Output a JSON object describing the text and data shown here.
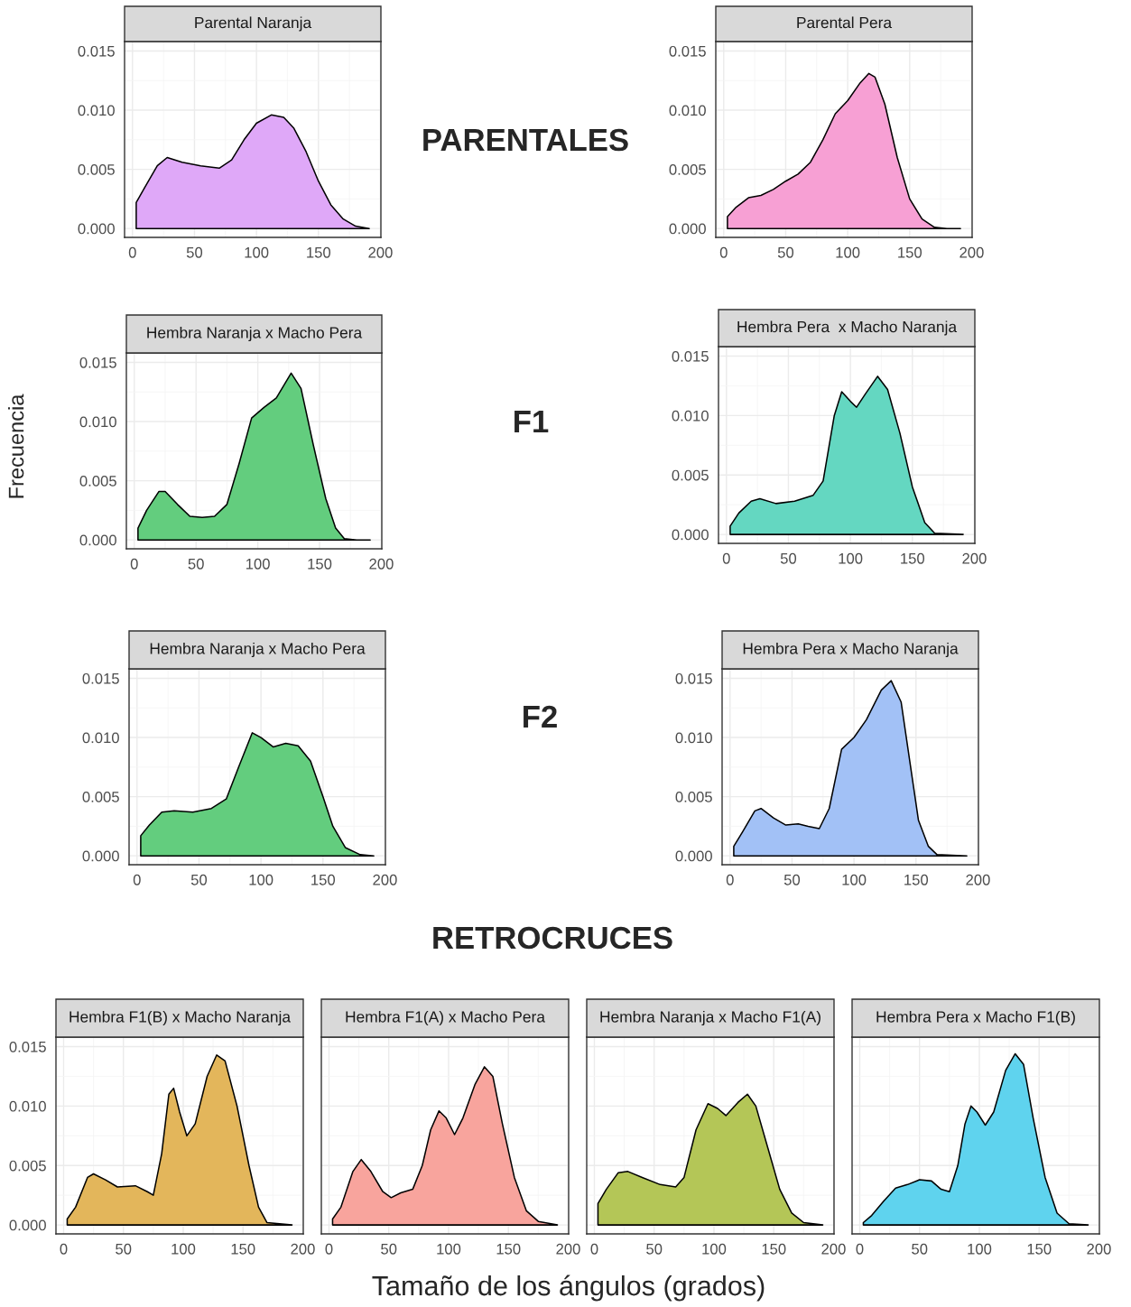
{
  "chart_data": [
    {
      "type": "area",
      "title": "Parental Naranja",
      "annotations": [
        "PARENTALES"
      ],
      "color": "#dfa8f8",
      "grid": true,
      "xlim": [
        -6.4,
        200.4
      ],
      "ylim": [
        -0.00075,
        0.0158
      ],
      "xticks": [
        0,
        50,
        100,
        150,
        200
      ],
      "yticks": [
        {
          "value": 0,
          "label": "0.000"
        },
        {
          "value": 0.005,
          "label": "0.005"
        },
        {
          "value": 0.01,
          "label": "0.010"
        },
        {
          "value": 0.015,
          "label": "0.015"
        }
      ],
      "x": [
        3,
        10,
        20,
        28,
        40,
        55,
        70,
        80,
        90,
        100,
        112,
        122,
        130,
        140,
        150,
        160,
        170,
        180,
        191
      ],
      "values": [
        0.0022,
        0.0035,
        0.0053,
        0.006,
        0.0056,
        0.0053,
        0.0051,
        0.0058,
        0.0075,
        0.0089,
        0.0096,
        0.0094,
        0.0085,
        0.0065,
        0.004,
        0.002,
        0.0008,
        0.0002,
        0
      ]
    },
    {
      "type": "area",
      "title": "Parental Pera",
      "color": "#f7a0d4",
      "grid": true,
      "xlim": [
        -6.4,
        200.4
      ],
      "ylim": [
        -0.00075,
        0.0158
      ],
      "xticks": [
        0,
        50,
        100,
        150,
        200
      ],
      "yticks": [
        {
          "value": 0,
          "label": "0.000"
        },
        {
          "value": 0.005,
          "label": "0.005"
        },
        {
          "value": 0.01,
          "label": "0.010"
        },
        {
          "value": 0.015,
          "label": "0.015"
        }
      ],
      "x": [
        3,
        10,
        20,
        30,
        40,
        50,
        60,
        70,
        80,
        90,
        100,
        110,
        117,
        122,
        130,
        140,
        150,
        160,
        170,
        180,
        191
      ],
      "values": [
        0.001,
        0.0018,
        0.0026,
        0.0028,
        0.0033,
        0.004,
        0.0046,
        0.0056,
        0.0075,
        0.0097,
        0.0108,
        0.0123,
        0.0131,
        0.0128,
        0.0105,
        0.006,
        0.0025,
        0.0008,
        0.0001,
        0,
        0
      ]
    },
    {
      "type": "area",
      "title": "Hembra Naranja x Macho Pera",
      "ylabel": "Frecuencia",
      "annotations": [
        "F1"
      ],
      "color": "#63cd7e",
      "grid": true,
      "xlim": [
        -6.4,
        200.4
      ],
      "ylim": [
        -0.00075,
        0.0158
      ],
      "xticks": [
        0,
        50,
        100,
        150,
        200
      ],
      "yticks": [
        {
          "value": 0,
          "label": "0.000"
        },
        {
          "value": 0.005,
          "label": "0.005"
        },
        {
          "value": 0.01,
          "label": "0.010"
        },
        {
          "value": 0.015,
          "label": "0.015"
        }
      ],
      "x": [
        3,
        10,
        20,
        25,
        35,
        45,
        55,
        65,
        75,
        85,
        95,
        105,
        115,
        127,
        135,
        145,
        155,
        163,
        170,
        180,
        191
      ],
      "values": [
        0.001,
        0.0025,
        0.0041,
        0.0041,
        0.003,
        0.002,
        0.0019,
        0.002,
        0.003,
        0.0065,
        0.0103,
        0.0112,
        0.012,
        0.0141,
        0.0128,
        0.008,
        0.0035,
        0.001,
        0.0001,
        0,
        0
      ]
    },
    {
      "type": "area",
      "title": "Hembra Pera  x Macho Naranja",
      "color": "#64d7c1",
      "grid": true,
      "xlim": [
        -6.4,
        200.4
      ],
      "ylim": [
        -0.00075,
        0.0158
      ],
      "xticks": [
        0,
        50,
        100,
        150,
        200
      ],
      "yticks": [
        {
          "value": 0,
          "label": "0.000"
        },
        {
          "value": 0.005,
          "label": "0.005"
        },
        {
          "value": 0.01,
          "label": "0.010"
        },
        {
          "value": 0.015,
          "label": "0.015"
        }
      ],
      "x": [
        3,
        10,
        20,
        27,
        40,
        55,
        70,
        78,
        87,
        93,
        100,
        105,
        112,
        122,
        130,
        140,
        150,
        160,
        168,
        191
      ],
      "values": [
        0.0007,
        0.0018,
        0.0028,
        0.003,
        0.0026,
        0.0028,
        0.0033,
        0.0045,
        0.01,
        0.012,
        0.0112,
        0.0107,
        0.0118,
        0.0133,
        0.0122,
        0.0085,
        0.004,
        0.001,
        0.0001,
        0
      ]
    },
    {
      "type": "area",
      "title": "Hembra Naranja x Macho Pera",
      "annotations": [
        "F2"
      ],
      "color": "#63cd7e",
      "grid": true,
      "xlim": [
        -6.4,
        200.4
      ],
      "ylim": [
        -0.00075,
        0.0158
      ],
      "xticks": [
        0,
        50,
        100,
        150,
        200
      ],
      "yticks": [
        {
          "value": 0,
          "label": "0.000"
        },
        {
          "value": 0.005,
          "label": "0.005"
        },
        {
          "value": 0.01,
          "label": "0.010"
        },
        {
          "value": 0.015,
          "label": "0.015"
        }
      ],
      "x": [
        3,
        10,
        20,
        30,
        45,
        60,
        72,
        82,
        93,
        100,
        110,
        120,
        130,
        140,
        150,
        158,
        168,
        180,
        191
      ],
      "values": [
        0.0017,
        0.0026,
        0.0037,
        0.0038,
        0.0037,
        0.004,
        0.0048,
        0.0075,
        0.0104,
        0.01,
        0.0092,
        0.0095,
        0.0093,
        0.008,
        0.005,
        0.0025,
        0.0007,
        0.0001,
        0
      ]
    },
    {
      "type": "area",
      "title": "Hembra Pera x Macho Naranja",
      "color": "#a2c1f6",
      "grid": true,
      "xlim": [
        -6.4,
        200.4
      ],
      "ylim": [
        -0.00075,
        0.0158
      ],
      "xticks": [
        0,
        50,
        100,
        150,
        200
      ],
      "yticks": [
        {
          "value": 0,
          "label": "0.000"
        },
        {
          "value": 0.005,
          "label": "0.005"
        },
        {
          "value": 0.01,
          "label": "0.010"
        },
        {
          "value": 0.015,
          "label": "0.015"
        }
      ],
      "x": [
        3,
        10,
        20,
        25,
        35,
        45,
        55,
        63,
        72,
        80,
        90,
        100,
        110,
        122,
        130,
        138,
        145,
        152,
        160,
        167,
        191
      ],
      "values": [
        0.0008,
        0.002,
        0.0038,
        0.004,
        0.0032,
        0.0026,
        0.0027,
        0.0025,
        0.0023,
        0.004,
        0.009,
        0.01,
        0.0115,
        0.014,
        0.0148,
        0.013,
        0.008,
        0.003,
        0.0008,
        0.0001,
        0
      ]
    },
    {
      "type": "area",
      "title": "Hembra F1(B) x Macho Naranja",
      "annotations": [
        "RETROCRUCES"
      ],
      "color": "#e3b65b",
      "grid": true,
      "xlim": [
        -6.4,
        200.4
      ],
      "ylim": [
        -0.00075,
        0.0158
      ],
      "xticks": [
        0,
        50,
        100,
        150,
        200
      ],
      "yticks": [
        {
          "value": 0,
          "label": "0.000"
        },
        {
          "value": 0.005,
          "label": "0.005"
        },
        {
          "value": 0.01,
          "label": "0.010"
        },
        {
          "value": 0.015,
          "label": "0.015"
        }
      ],
      "x": [
        3,
        10,
        20,
        25,
        35,
        45,
        60,
        70,
        75,
        82,
        88,
        92,
        97,
        103,
        110,
        120,
        128,
        135,
        145,
        155,
        163,
        170,
        191
      ],
      "values": [
        0.0005,
        0.0015,
        0.004,
        0.0043,
        0.0038,
        0.0032,
        0.0033,
        0.0028,
        0.0025,
        0.006,
        0.011,
        0.0115,
        0.0095,
        0.0075,
        0.0085,
        0.0125,
        0.0143,
        0.0138,
        0.01,
        0.005,
        0.0015,
        0.0002,
        0
      ]
    },
    {
      "type": "area",
      "title": "Hembra F1(A) x Macho Pera",
      "xlabel": "Tamaño de los ángulos (grados)",
      "tick_labels": "x",
      "color": "#f8a49d",
      "grid": true,
      "xlim": [
        -6.4,
        200.4
      ],
      "ylim": [
        -0.00075,
        0.0158
      ],
      "xticks": [
        0,
        50,
        100,
        150,
        200
      ],
      "yticks": [
        0,
        0.005,
        0.01,
        0.015
      ],
      "x": [
        3,
        10,
        20,
        27,
        35,
        45,
        52,
        60,
        70,
        78,
        85,
        92,
        98,
        105,
        112,
        122,
        130,
        137,
        145,
        155,
        165,
        175,
        191
      ],
      "values": [
        0.0005,
        0.0015,
        0.0045,
        0.0055,
        0.0045,
        0.0028,
        0.0023,
        0.0027,
        0.003,
        0.005,
        0.008,
        0.0096,
        0.009,
        0.0076,
        0.009,
        0.0118,
        0.0133,
        0.0125,
        0.0085,
        0.004,
        0.0012,
        0.0003,
        0
      ]
    },
    {
      "type": "area",
      "title": "Hembra Naranja x Macho F1(A)",
      "tick_labels": "x",
      "color": "#b4c657",
      "grid": true,
      "xlim": [
        -6.4,
        200.4
      ],
      "ylim": [
        -0.00075,
        0.0158
      ],
      "xticks": [
        0,
        50,
        100,
        150,
        200
      ],
      "yticks": [
        0,
        0.005,
        0.01,
        0.015
      ],
      "x": [
        3,
        10,
        20,
        28,
        40,
        55,
        68,
        75,
        85,
        95,
        103,
        110,
        120,
        128,
        135,
        145,
        155,
        165,
        175,
        191
      ],
      "values": [
        0.0018,
        0.003,
        0.0044,
        0.0045,
        0.004,
        0.0034,
        0.0032,
        0.004,
        0.008,
        0.0102,
        0.0098,
        0.0092,
        0.0103,
        0.011,
        0.01,
        0.0065,
        0.003,
        0.001,
        0.0002,
        0
      ]
    },
    {
      "type": "area",
      "title": "Hembra Pera x Macho F1(B)",
      "tick_labels": "x",
      "color": "#5fd3ee",
      "grid": true,
      "xlim": [
        -6.4,
        200.4
      ],
      "ylim": [
        -0.00075,
        0.0158
      ],
      "xticks": [
        0,
        50,
        100,
        150,
        200
      ],
      "yticks": [
        0,
        0.005,
        0.01,
        0.015
      ],
      "x": [
        3,
        10,
        20,
        30,
        40,
        50,
        60,
        68,
        75,
        82,
        88,
        93,
        98,
        105,
        112,
        122,
        130,
        137,
        145,
        155,
        165,
        175,
        191
      ],
      "values": [
        0.0002,
        0.0008,
        0.002,
        0.0031,
        0.0034,
        0.0038,
        0.0037,
        0.003,
        0.0028,
        0.005,
        0.0085,
        0.01,
        0.0095,
        0.0084,
        0.0095,
        0.013,
        0.0144,
        0.0135,
        0.009,
        0.004,
        0.001,
        0.0001,
        0
      ]
    }
  ]
}
